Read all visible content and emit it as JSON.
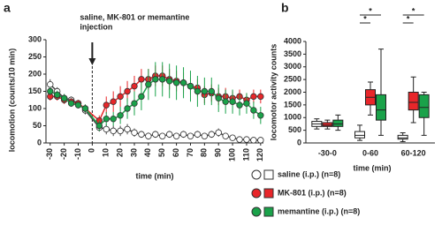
{
  "chart_data": [
    {
      "type": "line",
      "panel": "a",
      "annotation": [
        "saline, MK-801 or memantine",
        "injection"
      ],
      "ylabel": "locomotion (counts/10 min)",
      "xlabel": "time (min)",
      "xlim": [
        -33,
        122
      ],
      "ylim": [
        0,
        300
      ],
      "xticks": [
        -30,
        -20,
        -10,
        0,
        10,
        20,
        30,
        40,
        50,
        60,
        70,
        80,
        90,
        100,
        110,
        120
      ],
      "yticks": [
        0,
        50,
        100,
        150,
        200,
        250,
        300
      ],
      "x": [
        -30,
        -25,
        -20,
        -15,
        -10,
        -5,
        5,
        10,
        15,
        20,
        25,
        30,
        35,
        40,
        45,
        50,
        55,
        60,
        65,
        70,
        75,
        80,
        85,
        90,
        95,
        100,
        105,
        110,
        115,
        120
      ],
      "series": [
        {
          "name": "saline (i.p.) (n=8)",
          "color": "#ffffff",
          "values": [
            170,
            150,
            130,
            125,
            115,
            95,
            45,
            40,
            35,
            35,
            40,
            30,
            25,
            20,
            25,
            20,
            25,
            20,
            25,
            20,
            25,
            20,
            25,
            30,
            20,
            15,
            10,
            10,
            8,
            8
          ],
          "errors": [
            15,
            12,
            12,
            10,
            10,
            12,
            12,
            15,
            15,
            15,
            15,
            12,
            10,
            10,
            10,
            8,
            10,
            8,
            10,
            8,
            10,
            8,
            10,
            12,
            8,
            8,
            6,
            6,
            5,
            5
          ]
        },
        {
          "name": "MK-801 (i.p.) (n=8)",
          "color": "#e8262a",
          "values": [
            135,
            135,
            125,
            120,
            115,
            100,
            65,
            110,
            120,
            135,
            150,
            165,
            185,
            185,
            195,
            195,
            185,
            180,
            175,
            165,
            160,
            140,
            145,
            135,
            135,
            130,
            135,
            125,
            135,
            135
          ],
          "errors": [
            12,
            12,
            12,
            10,
            10,
            12,
            15,
            25,
            30,
            30,
            30,
            30,
            30,
            30,
            30,
            30,
            30,
            30,
            30,
            25,
            25,
            25,
            25,
            25,
            25,
            20,
            20,
            20,
            20,
            20
          ]
        },
        {
          "name": "memantine (i.p.) (n=8)",
          "color": "#1aa24a",
          "values": [
            150,
            140,
            130,
            115,
            110,
            100,
            50,
            70,
            70,
            80,
            100,
            115,
            135,
            170,
            185,
            185,
            180,
            175,
            175,
            165,
            150,
            150,
            150,
            130,
            120,
            120,
            110,
            115,
            95,
            80
          ],
          "errors": [
            12,
            12,
            12,
            10,
            10,
            12,
            15,
            20,
            20,
            25,
            30,
            35,
            40,
            45,
            50,
            50,
            50,
            50,
            45,
            45,
            45,
            40,
            40,
            40,
            35,
            35,
            30,
            30,
            25,
            25
          ]
        }
      ]
    },
    {
      "type": "box",
      "panel": "b",
      "ylabel": "locomotor activity counts",
      "xlabel": "time (min)",
      "categories": [
        "-30-0",
        "0-60",
        "60-120"
      ],
      "ylim": [
        0,
        4000
      ],
      "yticks": [
        0,
        500,
        1000,
        1500,
        2000,
        2500,
        3000,
        3500,
        4000
      ],
      "significance": [
        "*",
        "*",
        "*",
        "*"
      ],
      "series": [
        {
          "color": "#ffffff",
          "boxes": [
            {
              "min": 550,
              "q1": 650,
              "median": 750,
              "q3": 850,
              "max": 950
            },
            {
              "min": 100,
              "q1": 200,
              "median": 300,
              "q3": 450,
              "max": 700
            },
            {
              "min": 50,
              "q1": 150,
              "median": 200,
              "q3": 300,
              "max": 400
            }
          ]
        },
        {
          "color": "#e8262a",
          "boxes": [
            {
              "min": 550,
              "q1": 650,
              "median": 700,
              "q3": 800,
              "max": 900
            },
            {
              "min": 1100,
              "q1": 1500,
              "median": 1800,
              "q3": 2100,
              "max": 2400
            },
            {
              "min": 800,
              "q1": 1300,
              "median": 1600,
              "q3": 2000,
              "max": 2600
            }
          ]
        },
        {
          "color": "#1aa24a",
          "boxes": [
            {
              "min": 500,
              "q1": 650,
              "median": 750,
              "q3": 900,
              "max": 1100
            },
            {
              "min": 300,
              "q1": 900,
              "median": 1300,
              "q3": 1900,
              "max": 3700
            },
            {
              "min": 300,
              "q1": 1000,
              "median": 1400,
              "q3": 1900,
              "max": 2000
            }
          ]
        }
      ]
    }
  ]
}
